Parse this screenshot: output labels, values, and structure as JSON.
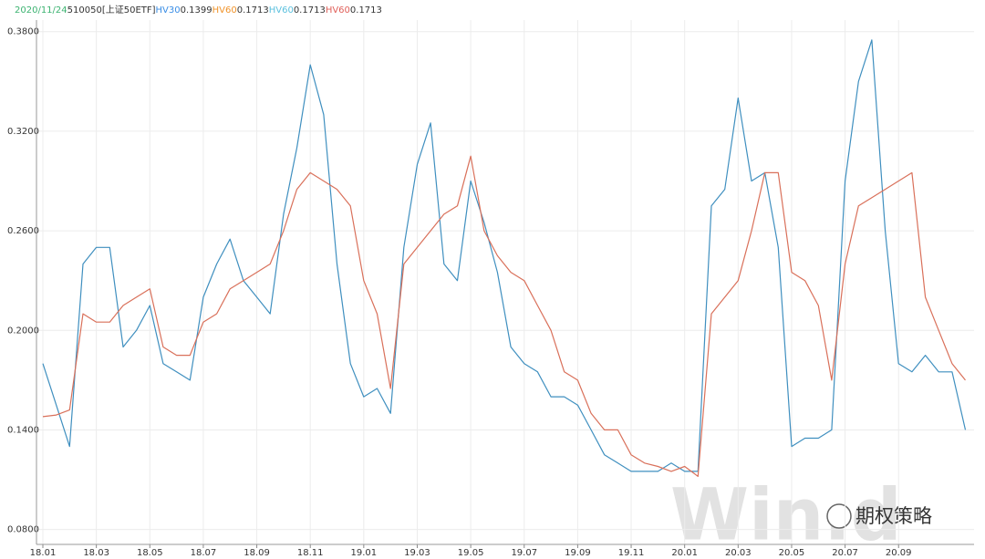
{
  "chart_data": {
    "type": "line",
    "date": "2020/11/24",
    "security": "510050[上证50ETF]",
    "readouts": [
      {
        "name": "HV30",
        "value": 0.1399,
        "color": "#3a8ee6"
      },
      {
        "name": "HV60",
        "value": 0.1713,
        "color": "#f0932b"
      },
      {
        "name": "HV60",
        "value": 0.1713,
        "color": "#5bc0de"
      },
      {
        "name": "HV60",
        "value": 0.1713,
        "color": "#e0605a"
      }
    ],
    "watermark": "Win.d",
    "badge": "期权策略",
    "grid": true,
    "categories": [
      "18.01",
      null,
      null,
      null,
      "18.03",
      null,
      null,
      null,
      "18.05",
      null,
      null,
      null,
      "18.07",
      null,
      null,
      null,
      "18.09",
      null,
      null,
      null,
      "18.11",
      null,
      null,
      null,
      "19.01",
      null,
      null,
      null,
      "19.03",
      null,
      null,
      null,
      "19.05",
      null,
      null,
      null,
      "19.07",
      null,
      null,
      null,
      "19.09",
      null,
      null,
      null,
      "19.11",
      null,
      null,
      null,
      "20.01",
      null,
      null,
      null,
      "20.03",
      null,
      null,
      null,
      "20.05",
      null,
      null,
      null,
      "20.07",
      null,
      null,
      null,
      "20.09",
      null,
      null,
      null,
      null,
      null
    ],
    "series": [
      {
        "color": "#3f8fbf",
        "values": [
          0.18,
          0.155,
          0.13,
          0.24,
          0.25,
          0.25,
          0.19,
          0.2,
          0.215,
          0.18,
          0.175,
          0.17,
          0.22,
          0.24,
          0.255,
          0.23,
          0.22,
          0.21,
          0.27,
          0.31,
          0.36,
          0.33,
          0.24,
          0.18,
          0.16,
          0.165,
          0.15,
          0.25,
          0.3,
          0.325,
          0.24,
          0.23,
          0.29,
          0.265,
          0.235,
          0.19,
          0.18,
          0.175,
          0.16,
          0.16,
          0.155,
          0.14,
          0.125,
          0.12,
          0.115,
          0.115,
          0.115,
          0.12,
          0.115,
          0.115,
          0.275,
          0.285,
          0.34,
          0.29,
          0.295,
          0.25,
          0.13,
          0.135,
          0.135,
          0.14,
          0.29,
          0.35,
          0.375,
          0.26,
          0.18,
          0.175,
          0.185,
          0.175,
          0.175,
          0.14
        ]
      },
      {
        "color": "#d9705a",
        "values": [
          0.148,
          0.149,
          0.152,
          0.21,
          0.205,
          0.205,
          0.215,
          0.22,
          0.225,
          0.19,
          0.185,
          0.185,
          0.205,
          0.21,
          0.225,
          0.23,
          0.235,
          0.24,
          0.26,
          0.285,
          0.295,
          0.29,
          0.285,
          0.275,
          0.23,
          0.21,
          0.165,
          0.24,
          0.25,
          0.26,
          0.27,
          0.275,
          0.305,
          0.26,
          0.245,
          0.235,
          0.23,
          0.215,
          0.2,
          0.175,
          0.17,
          0.15,
          0.14,
          0.14,
          0.125,
          0.12,
          0.118,
          0.115,
          0.118,
          0.112,
          0.21,
          0.22,
          0.23,
          0.26,
          0.295,
          0.295,
          0.235,
          0.23,
          0.215,
          0.17,
          0.24,
          0.275,
          0.28,
          0.285,
          0.29,
          0.295,
          0.22,
          0.2,
          0.18,
          0.17
        ]
      }
    ],
    "ylim": [
      0.071,
      0.387
    ],
    "yticks": [
      {
        "value": 0.08,
        "label": "0.0800"
      },
      {
        "value": 0.14,
        "label": "0.1400"
      },
      {
        "value": 0.2,
        "label": "0.2000"
      },
      {
        "value": 0.26,
        "label": "0.2600"
      },
      {
        "value": 0.32,
        "label": "0.3200"
      },
      {
        "value": 0.38,
        "label": "0.3800"
      }
    ]
  }
}
